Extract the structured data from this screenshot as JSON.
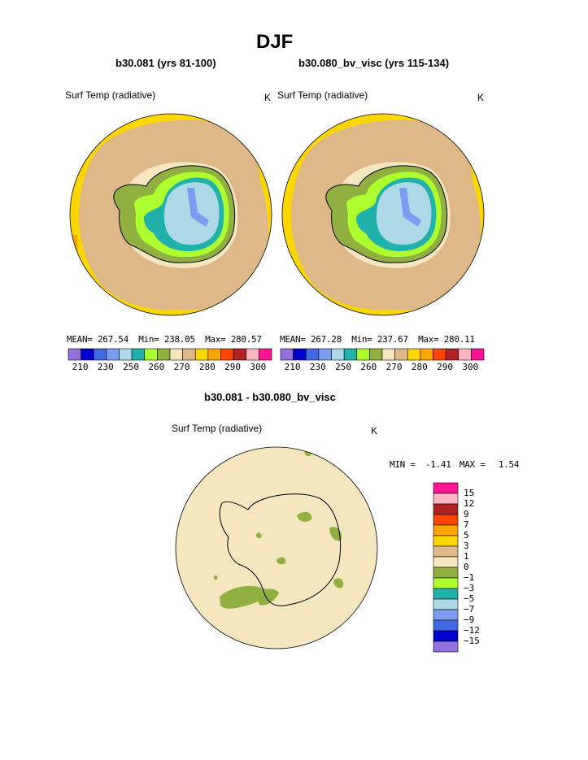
{
  "title": "DJF",
  "panels": [
    {
      "title": "b30.081 (yrs 81-100)",
      "variable": "Surf Temp (radiative)",
      "units": "K",
      "stats": {
        "mean_label": "MEAN=",
        "mean": "267.54",
        "min_label": "Min=",
        "min": "238.05",
        "max_label": "Max=",
        "max": "280.57"
      }
    },
    {
      "title": "b30.080_bv_visc (yrs 115-134)",
      "variable": "Surf Temp (radiative)",
      "units": "K",
      "stats": {
        "mean_label": "MEAN=",
        "mean": "267.28",
        "min_label": "Min=",
        "min": "237.67",
        "max_label": "Max=",
        "max": "280.11"
      }
    }
  ],
  "abs_colorbar": {
    "colors": [
      "#9370db",
      "#0000cd",
      "#4169e1",
      "#7b9cf0",
      "#add8e6",
      "#20b2aa",
      "#adff2f",
      "#90b040",
      "#f5e6c0",
      "#deb887",
      "#ffd700",
      "#ffa500",
      "#ff4500",
      "#b22222",
      "#ffb6c1",
      "#ff1493"
    ],
    "labels": [
      "210",
      "230",
      "250",
      "260",
      "270",
      "280",
      "290",
      "300"
    ]
  },
  "diff_panel": {
    "title": "b30.081 - b30.080_bv_visc",
    "variable": "Surf Temp (radiative)",
    "units": "K",
    "min_label": "MIN =",
    "min": "-1.41",
    "max_label": "MAX =",
    "max": "1.54"
  },
  "diff_colorbar": {
    "colors": [
      "#ff1493",
      "#ffb6c1",
      "#b22222",
      "#ff4500",
      "#ffa500",
      "#ffd700",
      "#deb887",
      "#f5e6c0",
      "#90b040",
      "#adff2f",
      "#20b2aa",
      "#add8e6",
      "#7b9cf0",
      "#4169e1",
      "#0000cd",
      "#9370db"
    ],
    "labels": [
      "15",
      "12",
      "9",
      "7",
      "5",
      "3",
      "1",
      "0",
      "−1",
      "−3",
      "−5",
      "−7",
      "−9",
      "−12",
      "−15"
    ]
  },
  "chart_data": [
    {
      "type": "heatmap",
      "title": "b30.081 (yrs 81-100)",
      "subtitle": "Surf Temp (radiative)",
      "units": "K",
      "mean": 267.54,
      "min": 238.05,
      "max": 280.57,
      "contour_levels": [
        210,
        220,
        230,
        240,
        250,
        255,
        260,
        265,
        270,
        275,
        280,
        285,
        290,
        295,
        300
      ]
    },
    {
      "type": "heatmap",
      "title": "b30.080_bv_visc (yrs 115-134)",
      "subtitle": "Surf Temp (radiative)",
      "units": "K",
      "mean": 267.28,
      "min": 237.67,
      "max": 280.11,
      "contour_levels": [
        210,
        220,
        230,
        240,
        250,
        255,
        260,
        265,
        270,
        275,
        280,
        285,
        290,
        295,
        300
      ]
    },
    {
      "type": "heatmap",
      "title": "b30.081 - b30.080_bv_visc",
      "subtitle": "Surf Temp (radiative)",
      "units": "K",
      "min": -1.41,
      "max": 1.54,
      "contour_levels": [
        -15,
        -12,
        -9,
        -7,
        -5,
        -3,
        -1,
        0,
        1,
        3,
        5,
        7,
        9,
        12,
        15
      ]
    }
  ]
}
